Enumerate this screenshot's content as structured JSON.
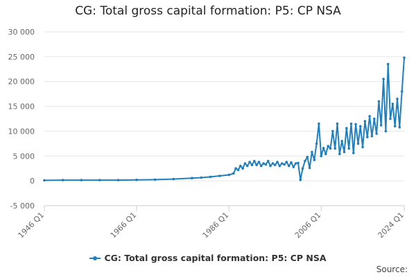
{
  "title": "CG: Total gross capital formation: P5: CP NSA",
  "source_label": "Source:",
  "colors": {
    "series": "#1f7fbf",
    "grid": "#e6e6e6",
    "axis_text": "#666666"
  },
  "chart_data": {
    "type": "line",
    "title": "CG: Total gross capital formation: P5: CP NSA",
    "xlabel": "",
    "ylabel": "",
    "ylim": [
      -5000,
      30000
    ],
    "yticks": [
      -5000,
      0,
      5000,
      10000,
      15000,
      20000,
      25000,
      30000
    ],
    "ytick_labels": [
      "-5 000",
      "0",
      "5 000",
      "10 000",
      "15 000",
      "20 000",
      "25 000",
      "30 000"
    ],
    "xlim": [
      "1946 Q1",
      "2024 Q1"
    ],
    "xtick_labels": [
      "1946 Q1",
      "1966 Q1",
      "1986 Q1",
      "2006 Q1",
      "2024 Q1"
    ],
    "grid": true,
    "legend_position": "bottom",
    "series": [
      {
        "name": "CG: Total gross capital formation: P5: CP NSA",
        "x": [
          "1946 Q1",
          "1950 Q1",
          "1954 Q1",
          "1958 Q1",
          "1962 Q1",
          "1966 Q1",
          "1970 Q1",
          "1974 Q1",
          "1978 Q1",
          "1980 Q1",
          "1982 Q1",
          "1984 Q1",
          "1986 Q1",
          "1987 Q1",
          "1987 Q3",
          "1988 Q1",
          "1988 Q3",
          "1989 Q1",
          "1989 Q3",
          "1990 Q1",
          "1990 Q3",
          "1991 Q1",
          "1991 Q3",
          "1992 Q1",
          "1992 Q3",
          "1993 Q1",
          "1993 Q3",
          "1994 Q1",
          "1994 Q3",
          "1995 Q1",
          "1995 Q3",
          "1996 Q1",
          "1996 Q3",
          "1997 Q1",
          "1997 Q3",
          "1998 Q1",
          "1998 Q3",
          "1999 Q1",
          "1999 Q3",
          "2000 Q1",
          "2000 Q3",
          "2001 Q1",
          "2001 Q3",
          "2002 Q1",
          "2002 Q3",
          "2003 Q1",
          "2003 Q3",
          "2004 Q1",
          "2004 Q3",
          "2005 Q1",
          "2005 Q3",
          "2006 Q1",
          "2006 Q3",
          "2007 Q1",
          "2007 Q3",
          "2008 Q1",
          "2008 Q3",
          "2009 Q1",
          "2009 Q3",
          "2010 Q1",
          "2010 Q3",
          "2011 Q1",
          "2011 Q3",
          "2012 Q1",
          "2012 Q3",
          "2013 Q1",
          "2013 Q3",
          "2014 Q1",
          "2014 Q3",
          "2015 Q1",
          "2015 Q3",
          "2016 Q1",
          "2016 Q3",
          "2017 Q1",
          "2017 Q3",
          "2018 Q1",
          "2018 Q3",
          "2019 Q1",
          "2019 Q3",
          "2020 Q1",
          "2020 Q3",
          "2021 Q1",
          "2021 Q3",
          "2022 Q1",
          "2022 Q3",
          "2023 Q1",
          "2023 Q3",
          "2024 Q1"
        ],
        "values": [
          100,
          150,
          150,
          150,
          150,
          200,
          250,
          350,
          550,
          650,
          800,
          1000,
          1200,
          1500,
          2500,
          2200,
          3000,
          2500,
          3500,
          3000,
          3800,
          3200,
          4000,
          3200,
          3800,
          3000,
          3500,
          3300,
          4000,
          3000,
          3500,
          3200,
          3800,
          3000,
          3500,
          3300,
          3800,
          3000,
          3700,
          2800,
          3500,
          3600,
          200,
          2500,
          4000,
          4800,
          2600,
          5800,
          4200,
          7500,
          11500,
          5000,
          6600,
          5400,
          7000,
          6500,
          10000,
          6500,
          11500,
          5400,
          8000,
          5800,
          10600,
          6500,
          11500,
          5600,
          11400,
          7500,
          11000,
          6800,
          12000,
          8800,
          13000,
          9000,
          12500,
          9500,
          16000,
          11200,
          20500,
          10000,
          23500,
          12500,
          15500,
          11000,
          16500,
          10800,
          18000,
          24800
        ]
      }
    ]
  }
}
